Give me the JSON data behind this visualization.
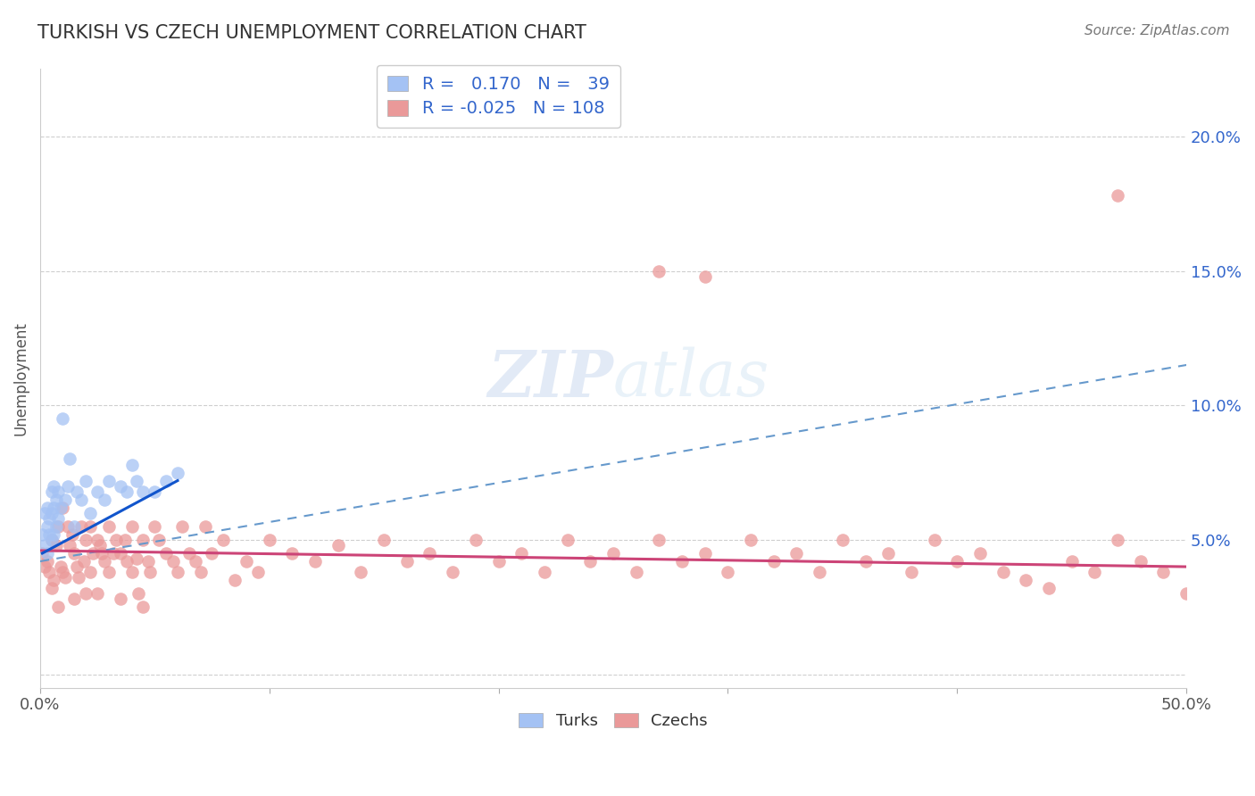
{
  "title": "TURKISH VS CZECH UNEMPLOYMENT CORRELATION CHART",
  "source": "Source: ZipAtlas.com",
  "ylabel": "Unemployment",
  "xlim": [
    0.0,
    0.5
  ],
  "ylim": [
    -0.005,
    0.225
  ],
  "yticks": [
    0.0,
    0.05,
    0.1,
    0.15,
    0.2
  ],
  "ytick_labels": [
    "",
    "5.0%",
    "10.0%",
    "15.0%",
    "20.0%"
  ],
  "xticks": [
    0.0,
    0.1,
    0.2,
    0.3,
    0.4,
    0.5
  ],
  "xtick_labels": [
    "0.0%",
    "",
    "",
    "",
    "",
    "50.0%"
  ],
  "turks_R": 0.17,
  "turks_N": 39,
  "czechs_R": -0.025,
  "czechs_N": 108,
  "turks_color": "#a4c2f4",
  "turks_line_color": "#1155cc",
  "czechs_color": "#ea9999",
  "czechs_line_color": "#cc4477",
  "dashed_line_color": "#6699cc",
  "background_color": "#ffffff",
  "grid_color": "#bbbbbb",
  "turks_x": [
    0.001,
    0.002,
    0.002,
    0.003,
    0.003,
    0.003,
    0.004,
    0.004,
    0.005,
    0.005,
    0.005,
    0.006,
    0.006,
    0.006,
    0.007,
    0.007,
    0.008,
    0.008,
    0.009,
    0.01,
    0.011,
    0.012,
    0.013,
    0.015,
    0.016,
    0.018,
    0.02,
    0.022,
    0.025,
    0.028,
    0.03,
    0.035,
    0.038,
    0.04,
    0.042,
    0.045,
    0.05,
    0.055,
    0.06
  ],
  "turks_y": [
    0.052,
    0.048,
    0.06,
    0.045,
    0.055,
    0.062,
    0.052,
    0.058,
    0.05,
    0.06,
    0.068,
    0.052,
    0.062,
    0.07,
    0.055,
    0.065,
    0.058,
    0.068,
    0.062,
    0.095,
    0.065,
    0.07,
    0.08,
    0.055,
    0.068,
    0.065,
    0.072,
    0.06,
    0.068,
    0.065,
    0.072,
    0.07,
    0.068,
    0.078,
    0.072,
    0.068,
    0.068,
    0.072,
    0.075
  ],
  "czechs_x": [
    0.001,
    0.002,
    0.003,
    0.004,
    0.005,
    0.005,
    0.006,
    0.007,
    0.008,
    0.008,
    0.009,
    0.01,
    0.01,
    0.011,
    0.012,
    0.013,
    0.014,
    0.015,
    0.015,
    0.016,
    0.017,
    0.018,
    0.019,
    0.02,
    0.02,
    0.022,
    0.022,
    0.023,
    0.025,
    0.025,
    0.026,
    0.027,
    0.028,
    0.03,
    0.03,
    0.032,
    0.033,
    0.035,
    0.035,
    0.037,
    0.038,
    0.04,
    0.04,
    0.042,
    0.043,
    0.045,
    0.045,
    0.047,
    0.048,
    0.05,
    0.052,
    0.055,
    0.058,
    0.06,
    0.062,
    0.065,
    0.068,
    0.07,
    0.072,
    0.075,
    0.08,
    0.085,
    0.09,
    0.095,
    0.1,
    0.11,
    0.12,
    0.13,
    0.14,
    0.15,
    0.16,
    0.17,
    0.18,
    0.19,
    0.2,
    0.21,
    0.22,
    0.23,
    0.24,
    0.25,
    0.26,
    0.27,
    0.28,
    0.29,
    0.3,
    0.31,
    0.32,
    0.33,
    0.34,
    0.35,
    0.36,
    0.37,
    0.38,
    0.39,
    0.4,
    0.41,
    0.42,
    0.43,
    0.44,
    0.45,
    0.46,
    0.47,
    0.48,
    0.49,
    0.5,
    0.27,
    0.29,
    0.47
  ],
  "czechs_y": [
    0.045,
    0.04,
    0.042,
    0.038,
    0.032,
    0.05,
    0.035,
    0.048,
    0.025,
    0.055,
    0.04,
    0.038,
    0.062,
    0.036,
    0.055,
    0.048,
    0.052,
    0.028,
    0.045,
    0.04,
    0.036,
    0.055,
    0.042,
    0.03,
    0.05,
    0.038,
    0.055,
    0.045,
    0.03,
    0.05,
    0.048,
    0.045,
    0.042,
    0.038,
    0.055,
    0.045,
    0.05,
    0.028,
    0.045,
    0.05,
    0.042,
    0.038,
    0.055,
    0.043,
    0.03,
    0.025,
    0.05,
    0.042,
    0.038,
    0.055,
    0.05,
    0.045,
    0.042,
    0.038,
    0.055,
    0.045,
    0.042,
    0.038,
    0.055,
    0.045,
    0.05,
    0.035,
    0.042,
    0.038,
    0.05,
    0.045,
    0.042,
    0.048,
    0.038,
    0.05,
    0.042,
    0.045,
    0.038,
    0.05,
    0.042,
    0.045,
    0.038,
    0.05,
    0.042,
    0.045,
    0.038,
    0.05,
    0.042,
    0.045,
    0.038,
    0.05,
    0.042,
    0.045,
    0.038,
    0.05,
    0.042,
    0.045,
    0.038,
    0.05,
    0.042,
    0.045,
    0.038,
    0.035,
    0.032,
    0.042,
    0.038,
    0.05,
    0.042,
    0.038,
    0.03,
    0.15,
    0.148,
    0.178
  ],
  "turks_line_x": [
    0.001,
    0.06
  ],
  "turks_line_y": [
    0.045,
    0.072
  ],
  "dash_line_x": [
    0.0,
    0.5
  ],
  "dash_line_y": [
    0.042,
    0.115
  ],
  "czech_line_x": [
    0.0,
    0.5
  ],
  "czech_line_y": [
    0.046,
    0.04
  ]
}
